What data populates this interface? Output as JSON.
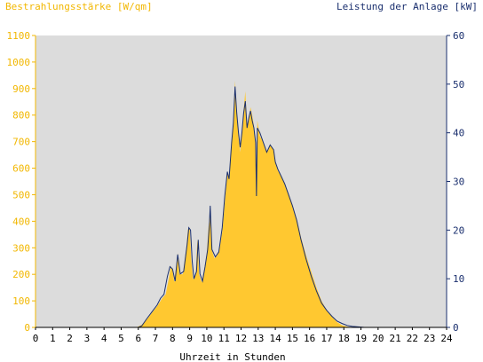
{
  "chart_data": {
    "type": "area",
    "title_left": "Bestrahlungsstärke [W/qm]",
    "title_right": "Leistung der Anlage [kW]",
    "xlabel": "Uhrzeit in Stunden",
    "x_ticks": [
      "0",
      "1",
      "2",
      "3",
      "4",
      "5",
      "6",
      "7",
      "8",
      "9",
      "10",
      "11",
      "12",
      "13",
      "14",
      "15",
      "16",
      "17",
      "18",
      "19",
      "20",
      "21",
      "22",
      "23",
      "24"
    ],
    "xlim": [
      0,
      24
    ],
    "y_left_ticks": [
      "0",
      "100",
      "200",
      "300",
      "400",
      "500",
      "600",
      "700",
      "800",
      "900",
      "1000",
      "1100"
    ],
    "ylim_left": [
      0,
      1100
    ],
    "y_right_ticks": [
      "0",
      "10",
      "20",
      "30",
      "40",
      "50",
      "60"
    ],
    "ylim_right": [
      0,
      60
    ],
    "grid": false,
    "colors": {
      "irradiance": "#ffc830",
      "power": "#1a2f6e",
      "plot_bg": "#dcdcdc",
      "left_axis": "#f2b700",
      "right_axis": "#1a2f6e"
    },
    "series": [
      {
        "name": "Bestrahlungsstärke",
        "axis": "left",
        "style": "filled-area",
        "points": [
          [
            0,
            0
          ],
          [
            5.9,
            0
          ],
          [
            6.2,
            10
          ],
          [
            6.5,
            30
          ],
          [
            6.8,
            55
          ],
          [
            7.1,
            80
          ],
          [
            7.4,
            110
          ],
          [
            7.6,
            125
          ],
          [
            7.8,
            190
          ],
          [
            7.9,
            230
          ],
          [
            8.0,
            220
          ],
          [
            8.1,
            170
          ],
          [
            8.3,
            280
          ],
          [
            8.4,
            200
          ],
          [
            8.6,
            200
          ],
          [
            8.8,
            300
          ],
          [
            8.9,
            370
          ],
          [
            9.0,
            370
          ],
          [
            9.1,
            250
          ],
          [
            9.2,
            180
          ],
          [
            9.35,
            200
          ],
          [
            9.45,
            330
          ],
          [
            9.55,
            200
          ],
          [
            9.7,
            170
          ],
          [
            9.85,
            220
          ],
          [
            10.0,
            280
          ],
          [
            10.1,
            380
          ],
          [
            10.2,
            430
          ],
          [
            10.3,
            290
          ],
          [
            10.45,
            260
          ],
          [
            10.6,
            270
          ],
          [
            10.75,
            300
          ],
          [
            10.9,
            360
          ],
          [
            11.05,
            470
          ],
          [
            11.2,
            580
          ],
          [
            11.3,
            560
          ],
          [
            11.45,
            700
          ],
          [
            11.55,
            760
          ],
          [
            11.65,
            930
          ],
          [
            11.75,
            810
          ],
          [
            11.85,
            720
          ],
          [
            11.95,
            660
          ],
          [
            12.05,
            730
          ],
          [
            12.15,
            820
          ],
          [
            12.25,
            890
          ],
          [
            12.35,
            760
          ],
          [
            12.45,
            780
          ],
          [
            12.55,
            830
          ],
          [
            12.65,
            800
          ],
          [
            12.75,
            760
          ],
          [
            12.85,
            700
          ],
          [
            12.9,
            500
          ],
          [
            12.95,
            780
          ],
          [
            13.1,
            720
          ],
          [
            13.3,
            700
          ],
          [
            13.5,
            660
          ],
          [
            13.7,
            690
          ],
          [
            13.9,
            670
          ],
          [
            14.0,
            620
          ],
          [
            14.15,
            590
          ],
          [
            14.35,
            570
          ],
          [
            14.55,
            540
          ],
          [
            14.75,
            510
          ],
          [
            15.0,
            460
          ],
          [
            15.25,
            410
          ],
          [
            15.5,
            340
          ],
          [
            15.8,
            270
          ],
          [
            16.1,
            210
          ],
          [
            16.4,
            150
          ],
          [
            16.7,
            100
          ],
          [
            17.0,
            65
          ],
          [
            17.3,
            40
          ],
          [
            17.6,
            20
          ],
          [
            17.9,
            8
          ],
          [
            18.2,
            3
          ],
          [
            18.5,
            0
          ],
          [
            19.2,
            0
          ],
          [
            24,
            0
          ]
        ]
      },
      {
        "name": "Leistung der Anlage",
        "axis": "right",
        "style": "line",
        "points": [
          [
            0,
            0
          ],
          [
            6.0,
            0
          ],
          [
            6.2,
            0.3
          ],
          [
            6.5,
            1.8
          ],
          [
            6.8,
            3.2
          ],
          [
            7.1,
            4.6
          ],
          [
            7.3,
            6.0
          ],
          [
            7.5,
            6.8
          ],
          [
            7.7,
            10.5
          ],
          [
            7.85,
            12.5
          ],
          [
            8.0,
            12.0
          ],
          [
            8.15,
            9.5
          ],
          [
            8.3,
            15.0
          ],
          [
            8.45,
            11.0
          ],
          [
            8.65,
            11.5
          ],
          [
            8.85,
            17.0
          ],
          [
            8.95,
            20.5
          ],
          [
            9.05,
            20.0
          ],
          [
            9.15,
            13.5
          ],
          [
            9.25,
            10.0
          ],
          [
            9.4,
            11.5
          ],
          [
            9.5,
            18.0
          ],
          [
            9.6,
            11.0
          ],
          [
            9.75,
            9.5
          ],
          [
            9.9,
            12.5
          ],
          [
            10.05,
            16.0
          ],
          [
            10.15,
            21.0
          ],
          [
            10.2,
            25.0
          ],
          [
            10.3,
            16.0
          ],
          [
            10.5,
            14.5
          ],
          [
            10.7,
            15.5
          ],
          [
            10.9,
            20.5
          ],
          [
            11.05,
            27.0
          ],
          [
            11.2,
            32.0
          ],
          [
            11.3,
            30.5
          ],
          [
            11.45,
            38.0
          ],
          [
            11.55,
            42.0
          ],
          [
            11.65,
            49.5
          ],
          [
            11.75,
            44.0
          ],
          [
            11.85,
            40.0
          ],
          [
            11.95,
            37.0
          ],
          [
            12.05,
            40.0
          ],
          [
            12.15,
            44.0
          ],
          [
            12.25,
            46.5
          ],
          [
            12.35,
            41.0
          ],
          [
            12.45,
            43.0
          ],
          [
            12.55,
            44.5
          ],
          [
            12.65,
            42.5
          ],
          [
            12.75,
            41.0
          ],
          [
            12.85,
            38.0
          ],
          [
            12.9,
            27.0
          ],
          [
            12.95,
            41.0
          ],
          [
            13.1,
            40.0
          ],
          [
            13.3,
            38.0
          ],
          [
            13.5,
            36.0
          ],
          [
            13.7,
            37.5
          ],
          [
            13.9,
            36.5
          ],
          [
            14.0,
            34.0
          ],
          [
            14.15,
            32.5
          ],
          [
            14.35,
            31.0
          ],
          [
            14.55,
            29.5
          ],
          [
            14.75,
            27.5
          ],
          [
            15.0,
            25.0
          ],
          [
            15.25,
            22.0
          ],
          [
            15.5,
            18.0
          ],
          [
            15.8,
            14.0
          ],
          [
            16.1,
            10.5
          ],
          [
            16.4,
            7.5
          ],
          [
            16.7,
            5.0
          ],
          [
            17.0,
            3.5
          ],
          [
            17.3,
            2.3
          ],
          [
            17.6,
            1.3
          ],
          [
            17.9,
            0.8
          ],
          [
            18.2,
            0.4
          ],
          [
            18.5,
            0.2
          ],
          [
            18.9,
            0.1
          ],
          [
            19.2,
            0
          ],
          [
            24,
            0
          ]
        ]
      }
    ]
  }
}
